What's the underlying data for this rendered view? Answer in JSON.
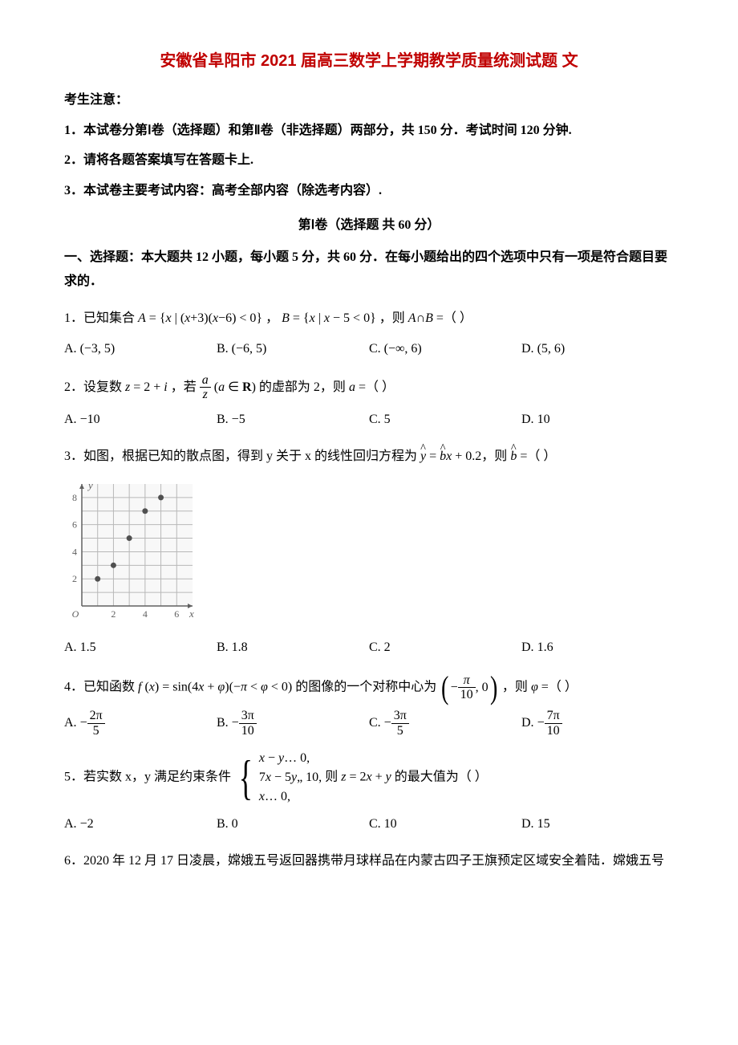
{
  "title": "安徽省阜阳市 2021 届高三数学上学期教学质量统测试题 文",
  "notice_heading": "考生注意：",
  "notes": [
    "1．本试卷分第Ⅰ卷（选择题）和第Ⅱ卷（非选择题）两部分，共 150 分．考试时间 120 分钟.",
    "2．请将各题答案填写在答题卡上.",
    "3．本试卷主要考试内容：高考全部内容（除选考内容）."
  ],
  "section1_header": "第Ⅰ卷（选择题  共 60 分）",
  "section1_instructions": "一、选择题：本大题共 12 小题，每小题 5 分，共 60 分．在每小题给出的四个选项中只有一项是符合题目要求的．",
  "q1": {
    "stem_pre": "1．已知集合 ",
    "A_expr": "A = {x | (x+3)(x−6) < 0}",
    "between": "，",
    "B_expr": "B = {x | x − 5 < 0}",
    "stem_post": "，则 A∩B =（    ）",
    "opts": {
      "A": "(−3, 5)",
      "B": "(−6, 5)",
      "C": "(−∞, 6)",
      "D": "(5, 6)"
    }
  },
  "q2": {
    "stem_pre": "2．设复数 ",
    "z_expr": "z = 2 + i",
    "mid1": "，若 ",
    "frac_num": "a",
    "frac_den": "z",
    "mid2": " (a ∈ R) 的虚部为 2，则 a =（    ）",
    "opts": {
      "A": "−10",
      "B": "−5",
      "C": "5",
      "D": "10"
    }
  },
  "q3": {
    "stem": "3．如图，根据已知的散点图，得到 y 关于 x 的线性回归方程为 ",
    "eq_y": "y",
    "eq_mid1": " = ",
    "eq_b": "b",
    "eq_mid2": "x + 0.2，则 ",
    "eq_b2": "b",
    "eq_post": " =（    ）",
    "scatter": {
      "points": [
        [
          1,
          2
        ],
        [
          2,
          3
        ],
        [
          3,
          5
        ],
        [
          4,
          7
        ],
        [
          5,
          8
        ]
      ],
      "xticks": [
        2,
        4,
        6
      ],
      "yticks": [
        2,
        4,
        6,
        8
      ],
      "xlim": [
        0,
        7
      ],
      "ylim": [
        0,
        9
      ],
      "width": 170,
      "height": 180,
      "origin_label": "O",
      "xlabel": "x",
      "ylabel": "y",
      "axis_color": "#606060",
      "grid_color": "#b8b8b8",
      "point_color": "#505050",
      "point_radius": 3.5,
      "bg_color": "#f8f8f8"
    },
    "opts": {
      "A": "1.5",
      "B": "1.8",
      "C": "2",
      "D": "1.6"
    }
  },
  "q4": {
    "stem_pre": "4．已知函数 ",
    "f_expr": "f (x) = sin(4x + φ)(−π < φ < 0)",
    "mid": " 的图像的一个对称中心为 ",
    "center_num": "π",
    "center_den": "10",
    "post": "，则 φ =（    ）",
    "opts": {
      "A": {
        "num": "2π",
        "den": "5"
      },
      "B": {
        "num": "3π",
        "den": "10"
      },
      "C": {
        "num": "3π",
        "den": "5"
      },
      "D": {
        "num": "7π",
        "den": "10"
      }
    }
  },
  "q5": {
    "stem_pre": "5．若实数 x，y 满足约束条件 ",
    "line1": "x − y… 0,",
    "line2": "7x − 5y„ 10,",
    "line3": "x… 0,",
    "stem_post": " 则 z = 2x + y 的最大值为（    ）",
    "opts": {
      "A": "−2",
      "B": "0",
      "C": "10",
      "D": "15"
    }
  },
  "q6": {
    "stem": "6．2020 年 12 月 17 日凌晨，嫦娥五号返回器携带月球样品在内蒙古四子王旗预定区域安全着陆．嫦娥五号"
  }
}
